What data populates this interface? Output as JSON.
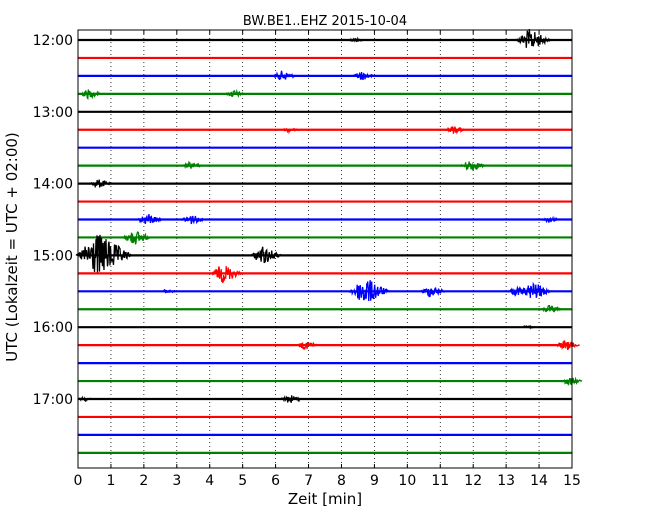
{
  "chart_data": {
    "type": "line",
    "title": "BW.BE1..EHZ 2015-10-04",
    "xlabel": "Zeit  [min]",
    "ylabel": "UTC (Lokalzeit = UTC + 02:00)",
    "xlim": [
      0,
      15
    ],
    "xticks": [
      "0",
      "1",
      "2",
      "3",
      "4",
      "5",
      "6",
      "7",
      "8",
      "9",
      "10",
      "11",
      "12",
      "13",
      "14",
      "15"
    ],
    "yticks": [
      "12:00",
      "13:00",
      "14:00",
      "15:00",
      "16:00",
      "17:00"
    ],
    "trace_interval_min": 15,
    "grid": "vertical-dotted",
    "colors": [
      "#000000",
      "#ff0000",
      "#0000ff",
      "#008000"
    ],
    "traces": [
      {
        "start": "12:00",
        "color": "#000000",
        "events": [
          {
            "t": 8.4,
            "amp": 0.3
          },
          {
            "t": 13.7,
            "amp": 1.4
          }
        ]
      },
      {
        "start": "12:15",
        "color": "#ff0000",
        "events": []
      },
      {
        "start": "12:30",
        "color": "#0000ff",
        "events": [
          {
            "t": 6.2,
            "amp": 0.7
          },
          {
            "t": 8.6,
            "amp": 0.6
          }
        ]
      },
      {
        "start": "12:45",
        "color": "#008000",
        "events": [
          {
            "t": 0.3,
            "amp": 0.6
          },
          {
            "t": 4.7,
            "amp": 0.5
          }
        ]
      },
      {
        "start": "13:00",
        "color": "#000000",
        "events": []
      },
      {
        "start": "13:15",
        "color": "#ff0000",
        "events": [
          {
            "t": 6.4,
            "amp": 0.3
          },
          {
            "t": 11.4,
            "amp": 0.5
          }
        ]
      },
      {
        "start": "13:30",
        "color": "#0000ff",
        "events": []
      },
      {
        "start": "13:45",
        "color": "#008000",
        "events": [
          {
            "t": 3.4,
            "amp": 0.5
          },
          {
            "t": 11.9,
            "amp": 0.8
          }
        ]
      },
      {
        "start": "14:00",
        "color": "#000000",
        "events": [
          {
            "t": 0.6,
            "amp": 0.6
          }
        ]
      },
      {
        "start": "14:15",
        "color": "#ff0000",
        "events": []
      },
      {
        "start": "14:30",
        "color": "#0000ff",
        "events": [
          {
            "t": 2.1,
            "amp": 0.8
          },
          {
            "t": 3.4,
            "amp": 0.7
          },
          {
            "t": 14.3,
            "amp": 0.4
          }
        ]
      },
      {
        "start": "14:45",
        "color": "#008000",
        "events": [
          {
            "t": 1.7,
            "amp": 1.0
          }
        ]
      },
      {
        "start": "15:00",
        "color": "#000000",
        "events": [
          {
            "t": 0.6,
            "amp": 2.8
          },
          {
            "t": 5.6,
            "amp": 1.2
          }
        ]
      },
      {
        "start": "15:15",
        "color": "#ff0000",
        "events": [
          {
            "t": 4.4,
            "amp": 1.2
          }
        ]
      },
      {
        "start": "15:30",
        "color": "#0000ff",
        "events": [
          {
            "t": 2.7,
            "amp": 0.3
          },
          {
            "t": 8.7,
            "amp": 1.8
          },
          {
            "t": 10.7,
            "amp": 0.8
          },
          {
            "t": 13.3,
            "amp": 0.6
          },
          {
            "t": 13.8,
            "amp": 1.2
          }
        ]
      },
      {
        "start": "15:45",
        "color": "#008000",
        "events": [
          {
            "t": 14.3,
            "amp": 0.5
          }
        ]
      },
      {
        "start": "16:00",
        "color": "#000000",
        "events": [
          {
            "t": 13.6,
            "amp": 0.2
          }
        ]
      },
      {
        "start": "16:15",
        "color": "#ff0000",
        "events": [
          {
            "t": 6.9,
            "amp": 0.6
          },
          {
            "t": 14.8,
            "amp": 0.7
          }
        ]
      },
      {
        "start": "16:30",
        "color": "#0000ff",
        "events": []
      },
      {
        "start": "16:45",
        "color": "#008000",
        "events": [
          {
            "t": 14.9,
            "amp": 0.6
          }
        ]
      },
      {
        "start": "17:00",
        "color": "#000000",
        "events": [
          {
            "t": 0.2,
            "amp": 0.3
          },
          {
            "t": 6.4,
            "amp": 0.6
          }
        ]
      },
      {
        "start": "17:15",
        "color": "#ff0000",
        "events": []
      },
      {
        "start": "17:30",
        "color": "#0000ff",
        "events": []
      },
      {
        "start": "17:45",
        "color": "#008000",
        "events": []
      }
    ]
  }
}
